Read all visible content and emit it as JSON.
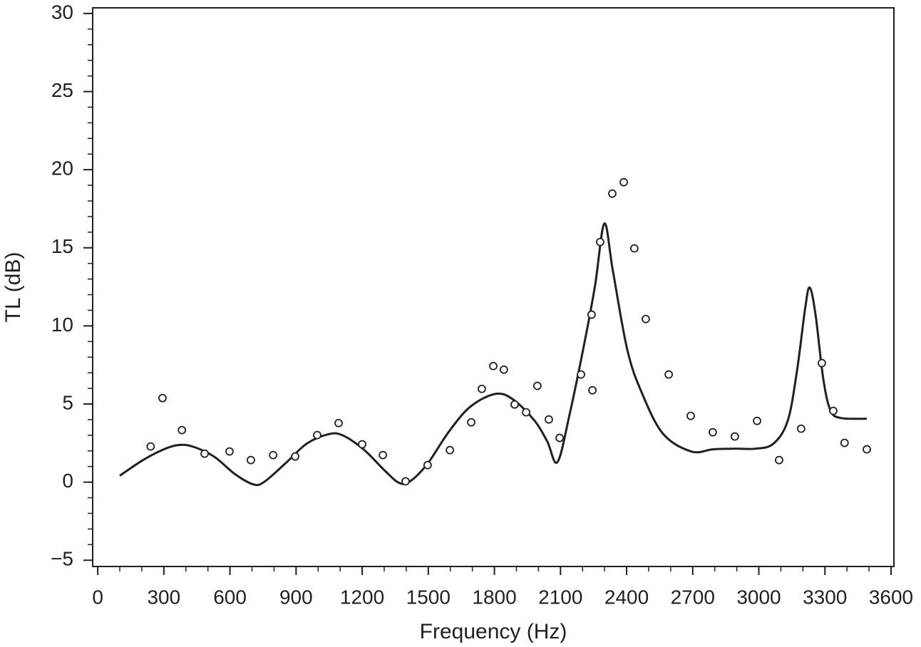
{
  "chart_data": {
    "type": "scatter",
    "x_label": "Frequency (Hz)",
    "y_label": "TL (dB)",
    "xlim": [
      -23,
      3613
    ],
    "ylim": [
      -5.4,
      30.36
    ],
    "xticks": [
      0,
      300,
      600,
      900,
      1200,
      1500,
      1800,
      2100,
      2400,
      2700,
      3000,
      3300,
      3600
    ],
    "yticks": [
      {
        "value": -5,
        "label": "−5"
      },
      0,
      5,
      10,
      15,
      20,
      25,
      30
    ],
    "x_minor_step": 100,
    "y_minor_step": 1,
    "series": [
      {
        "type": "line",
        "color": "#231f20",
        "x": [
          100,
          204,
          300,
          365,
          430,
          527,
          624,
          705,
          754,
          851,
          948,
          1045,
          1109,
          1206,
          1303,
          1368,
          1417,
          1497,
          1594,
          1691,
          1805,
          1885,
          1983,
          2040,
          2086,
          2142,
          2209,
          2257,
          2299,
          2338,
          2403,
          2468,
          2565,
          2694,
          2791,
          2888,
          2985,
          3066,
          3131,
          3173,
          3211,
          3231,
          3257,
          3292,
          3325,
          3373,
          3490
        ],
        "values": [
          0.41,
          1.4,
          2.1,
          2.37,
          2.28,
          1.64,
          0.5,
          -0.14,
          0,
          1.19,
          2.46,
          3.06,
          3.01,
          2.1,
          0.73,
          -0.05,
          0.05,
          1.19,
          3.24,
          4.83,
          5.65,
          5.29,
          3.92,
          2.6,
          1.28,
          4.38,
          8.94,
          12.6,
          16.55,
          13.5,
          8.48,
          5.75,
          3.1,
          1.96,
          2.1,
          2.14,
          2.14,
          2.46,
          3.92,
          7.11,
          11.2,
          12.45,
          10.76,
          6.66,
          4.6,
          4.1,
          4.06
        ]
      },
      {
        "type": "scatter",
        "color": "#231f20",
        "x": [
          240,
          294,
          382,
          485,
          598,
          695,
          796,
          896,
          996,
          1093,
          1200,
          1294,
          1397,
          1497,
          1598,
          1695,
          1743,
          1795,
          1843,
          1892,
          1944,
          1995,
          2047,
          2096,
          2193,
          2241,
          2245,
          2280,
          2335,
          2387,
          2435,
          2487,
          2591,
          2691,
          2791,
          2891,
          2992,
          3092,
          3192,
          3286,
          3338,
          3389,
          3490
        ],
        "values": [
          2.28,
          5.38,
          3.33,
          1.82,
          1.96,
          1.41,
          1.73,
          1.64,
          3.01,
          3.78,
          2.42,
          1.73,
          0.05,
          1.09,
          2.05,
          3.83,
          5.97,
          7.43,
          7.2,
          4.97,
          4.47,
          6.16,
          4.01,
          2.83,
          6.89,
          10.72,
          5.88,
          15.37,
          18.47,
          19.2,
          14.96,
          10.44,
          6.89,
          4.24,
          3.19,
          2.92,
          3.92,
          1.41,
          3.42,
          7.62,
          4.56,
          2.51,
          2.1
        ]
      }
    ]
  }
}
